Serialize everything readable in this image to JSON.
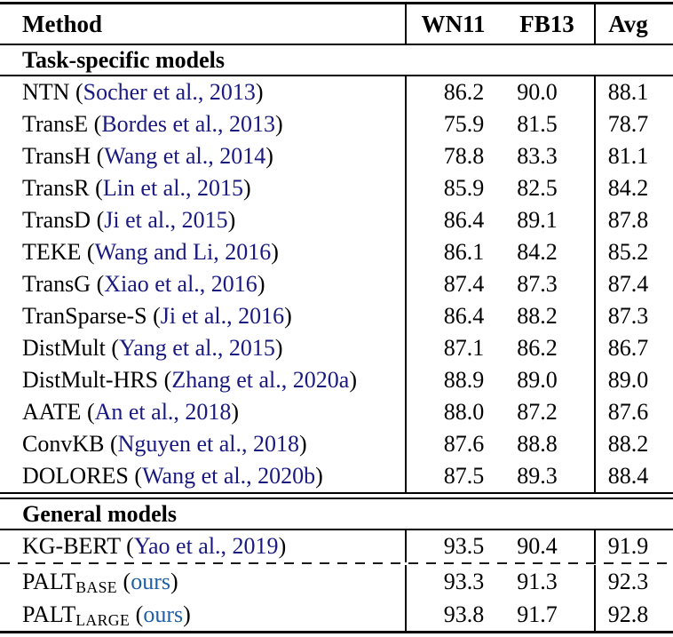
{
  "table": {
    "columns": {
      "method": "Method",
      "wn11": "WN11",
      "fb13": "FB13",
      "avg": "Avg"
    },
    "punct": {
      "open": " (",
      "close": ")"
    },
    "colors": {
      "citation": "#191980",
      "ours": "#1f5fa6",
      "text": "#000000"
    },
    "sections": [
      {
        "title": "Task-specific models",
        "rows": [
          {
            "name": "NTN",
            "cite": "Socher et al., 2013",
            "wn11": "86.2",
            "fb13": "90.0",
            "avg": "88.1"
          },
          {
            "name": "TransE",
            "cite": "Bordes et al., 2013",
            "wn11": "75.9",
            "fb13": "81.5",
            "avg": "78.7"
          },
          {
            "name": "TransH",
            "cite": "Wang et al., 2014",
            "wn11": "78.8",
            "fb13": "83.3",
            "avg": "81.1"
          },
          {
            "name": "TransR",
            "cite": "Lin et al., 2015",
            "wn11": "85.9",
            "fb13": "82.5",
            "avg": "84.2"
          },
          {
            "name": "TransD",
            "cite": "Ji et al., 2015",
            "wn11": "86.4",
            "fb13": "89.1",
            "avg": "87.8"
          },
          {
            "name": "TEKE",
            "cite": "Wang and Li, 2016",
            "wn11": "86.1",
            "fb13": "84.2",
            "avg": "85.2"
          },
          {
            "name": "TransG",
            "cite": "Xiao et al., 2016",
            "wn11": "87.4",
            "fb13": "87.3",
            "avg": "87.4"
          },
          {
            "name": "TranSparse-S",
            "cite": "Ji et al., 2016",
            "wn11": "86.4",
            "fb13": "88.2",
            "avg": "87.3"
          },
          {
            "name": "DistMult",
            "cite": "Yang et al., 2015",
            "wn11": "87.1",
            "fb13": "86.2",
            "avg": "86.7"
          },
          {
            "name": "DistMult-HRS",
            "cite": "Zhang et al., 2020a",
            "wn11": "88.9",
            "fb13": "89.0",
            "avg": "89.0"
          },
          {
            "name": "AATE",
            "cite": "An et al., 2018",
            "wn11": "88.0",
            "fb13": "87.2",
            "avg": "87.6"
          },
          {
            "name": "ConvKB",
            "cite": "Nguyen et al., 2018",
            "wn11": "87.6",
            "fb13": "88.8",
            "avg": "88.2"
          },
          {
            "name": "DOLORES",
            "cite": "Wang et al., 2020b",
            "wn11": "87.5",
            "fb13": "89.3",
            "avg": "88.4"
          }
        ]
      },
      {
        "title": "General models",
        "rows": [
          {
            "name": "KG-BERT",
            "cite": "Yao et al., 2019",
            "wn11": "93.5",
            "fb13": "90.4",
            "avg": "91.9",
            "dashed_after": true
          },
          {
            "name": "PALT",
            "sub": "BASE",
            "ours": "ours",
            "wn11": "93.3",
            "fb13": "91.3",
            "avg": "92.3"
          },
          {
            "name": "PALT",
            "sub": "LARGE",
            "ours": "ours",
            "wn11": "93.8",
            "fb13": "91.7",
            "avg": "92.8"
          }
        ]
      }
    ]
  }
}
